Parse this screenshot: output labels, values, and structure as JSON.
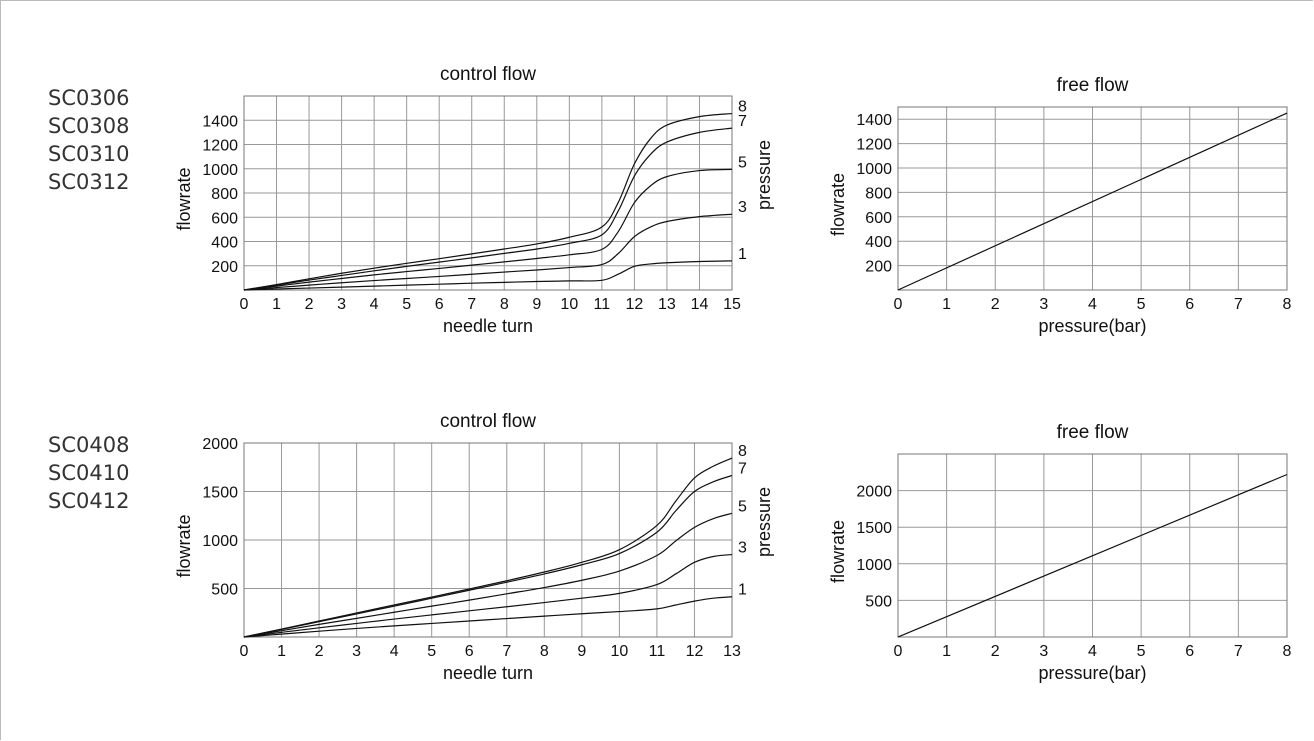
{
  "model_groups": [
    {
      "models": [
        "SC0306",
        "SC0308",
        "SC0310",
        "SC0312"
      ]
    },
    {
      "models": [
        "SC0408",
        "SC0410",
        "SC0412"
      ]
    }
  ],
  "chart_data": [
    {
      "id": "cf1",
      "type": "line",
      "title": "control flow",
      "xlabel": "needle turn",
      "ylabel": "flowrate",
      "y2label": "pressure",
      "xlim": [
        0,
        15
      ],
      "ylim": [
        0,
        1600
      ],
      "xticks": [
        0,
        1,
        2,
        3,
        4,
        5,
        6,
        7,
        8,
        9,
        10,
        11,
        12,
        13,
        14,
        15
      ],
      "yticks": [
        200,
        400,
        600,
        800,
        1000,
        1200,
        1400
      ],
      "grid": true,
      "series": [
        {
          "name": "1",
          "x": [
            0,
            1,
            2,
            3,
            4,
            5,
            6,
            7,
            8,
            9,
            10,
            11,
            11.5,
            12,
            12.5,
            13,
            14,
            15
          ],
          "y": [
            0,
            8,
            16,
            24,
            32,
            40,
            48,
            56,
            63,
            70,
            75,
            80,
            130,
            195,
            215,
            225,
            235,
            240
          ]
        },
        {
          "name": "3",
          "x": [
            0,
            1,
            2,
            3,
            4,
            5,
            6,
            7,
            8,
            9,
            10,
            11,
            11.5,
            12,
            12.5,
            13,
            14,
            15
          ],
          "y": [
            0,
            20,
            40,
            60,
            78,
            95,
            112,
            130,
            148,
            165,
            185,
            210,
            300,
            440,
            520,
            565,
            605,
            625
          ]
        },
        {
          "name": "5",
          "x": [
            0,
            1,
            2,
            3,
            4,
            5,
            6,
            7,
            8,
            9,
            10,
            11,
            11.5,
            12,
            12.5,
            13,
            14,
            15
          ],
          "y": [
            0,
            32,
            65,
            95,
            125,
            152,
            178,
            205,
            232,
            260,
            290,
            335,
            480,
            720,
            860,
            935,
            985,
            995
          ]
        },
        {
          "name": "7",
          "x": [
            0,
            1,
            2,
            3,
            4,
            5,
            6,
            7,
            8,
            9,
            10,
            11,
            11.5,
            12,
            12.5,
            13,
            14,
            15
          ],
          "y": [
            0,
            40,
            82,
            120,
            158,
            195,
            230,
            265,
            302,
            338,
            385,
            455,
            650,
            940,
            1120,
            1220,
            1300,
            1335
          ]
        },
        {
          "name": "8",
          "x": [
            0,
            1,
            2,
            3,
            4,
            5,
            6,
            7,
            8,
            9,
            10,
            11,
            11.5,
            12,
            12.5,
            13,
            14,
            15
          ],
          "y": [
            0,
            45,
            92,
            138,
            180,
            220,
            258,
            298,
            338,
            380,
            435,
            520,
            720,
            1040,
            1250,
            1360,
            1430,
            1455
          ]
        }
      ]
    },
    {
      "id": "ff1",
      "type": "line",
      "title": "free flow",
      "xlabel": "pressure(bar)",
      "ylabel": "flowrate",
      "xlim": [
        0,
        8
      ],
      "ylim": [
        0,
        1500
      ],
      "xticks": [
        0,
        1,
        2,
        3,
        4,
        5,
        6,
        7,
        8
      ],
      "yticks": [
        200,
        400,
        600,
        800,
        1000,
        1200,
        1400
      ],
      "grid": true,
      "series": [
        {
          "x": [
            0,
            8
          ],
          "y": [
            0,
            1450
          ]
        }
      ]
    },
    {
      "id": "cf2",
      "type": "line",
      "title": "control flow",
      "xlabel": "needle turn",
      "ylabel": "flowrate",
      "y2label": "pressure",
      "xlim": [
        0,
        13
      ],
      "ylim": [
        0,
        2000
      ],
      "xticks": [
        0,
        1,
        2,
        3,
        4,
        5,
        6,
        7,
        8,
        9,
        10,
        11,
        12,
        13
      ],
      "yticks": [
        500,
        1000,
        1500,
        2000
      ],
      "grid": true,
      "series": [
        {
          "name": "1",
          "x": [
            0,
            1,
            2,
            3,
            4,
            5,
            6,
            7,
            8,
            9,
            10,
            11,
            11.5,
            12,
            12.5,
            13
          ],
          "y": [
            0,
            30,
            60,
            88,
            115,
            140,
            165,
            190,
            215,
            240,
            262,
            290,
            330,
            370,
            400,
            415
          ]
        },
        {
          "name": "3",
          "x": [
            0,
            1,
            2,
            3,
            4,
            5,
            6,
            7,
            8,
            9,
            10,
            11,
            11.5,
            12,
            12.5,
            13
          ],
          "y": [
            0,
            48,
            95,
            140,
            185,
            228,
            270,
            312,
            355,
            400,
            450,
            540,
            650,
            770,
            830,
            850
          ]
        },
        {
          "name": "5",
          "x": [
            0,
            1,
            2,
            3,
            4,
            5,
            6,
            7,
            8,
            9,
            10,
            11,
            11.5,
            12,
            12.5,
            13
          ],
          "y": [
            0,
            65,
            130,
            192,
            255,
            318,
            380,
            445,
            510,
            585,
            680,
            840,
            990,
            1130,
            1220,
            1275
          ]
        },
        {
          "name": "7",
          "x": [
            0,
            1,
            2,
            3,
            4,
            5,
            6,
            7,
            8,
            9,
            10,
            11,
            11.5,
            12,
            12.5,
            13
          ],
          "y": [
            0,
            78,
            158,
            238,
            318,
            400,
            482,
            565,
            650,
            745,
            860,
            1080,
            1300,
            1500,
            1600,
            1665
          ]
        },
        {
          "name": "8",
          "x": [
            0,
            1,
            2,
            3,
            4,
            5,
            6,
            7,
            8,
            9,
            10,
            11,
            11.5,
            12,
            12.5,
            13
          ],
          "y": [
            0,
            82,
            165,
            248,
            330,
            412,
            495,
            580,
            670,
            770,
            900,
            1150,
            1400,
            1640,
            1760,
            1845
          ]
        }
      ]
    },
    {
      "id": "ff2",
      "type": "line",
      "title": "free flow",
      "xlabel": "pressure(bar)",
      "ylabel": "flowrate",
      "xlim": [
        0,
        8
      ],
      "ylim": [
        0,
        2500
      ],
      "xticks": [
        0,
        1,
        2,
        3,
        4,
        5,
        6,
        7,
        8
      ],
      "yticks": [
        500,
        1000,
        1500,
        2000
      ],
      "grid": true,
      "series": [
        {
          "x": [
            0,
            8
          ],
          "y": [
            0,
            2220
          ]
        }
      ]
    }
  ]
}
